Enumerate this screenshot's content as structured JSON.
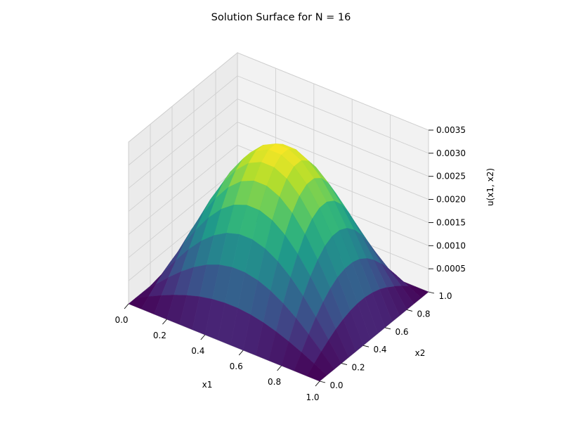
{
  "chart_data": {
    "type": "surface",
    "title": "Solution Surface for N = 16",
    "xlabel": "x1",
    "ylabel": "x2",
    "zlabel": "u(x1, x2)",
    "grid": true,
    "colormap": "viridis",
    "xlim": [
      0,
      1
    ],
    "ylim": [
      0,
      1
    ],
    "zlim": [
      0,
      0.0035
    ],
    "x_ticks": [
      "0.0",
      "0.2",
      "0.4",
      "0.6",
      "0.8",
      "1.0"
    ],
    "y_ticks": [
      "0.0",
      "0.2",
      "0.4",
      "0.6",
      "0.8",
      "1.0"
    ],
    "z_ticks": [
      "0.0005",
      "0.0010",
      "0.0015",
      "0.0020",
      "0.0025",
      "0.0030",
      "0.0035"
    ],
    "grid_points": 16,
    "function": "u(x1, x2) = 0.00325 * sin(pi*x1) * sin(pi*x2)",
    "z_max": 0.00325
  }
}
